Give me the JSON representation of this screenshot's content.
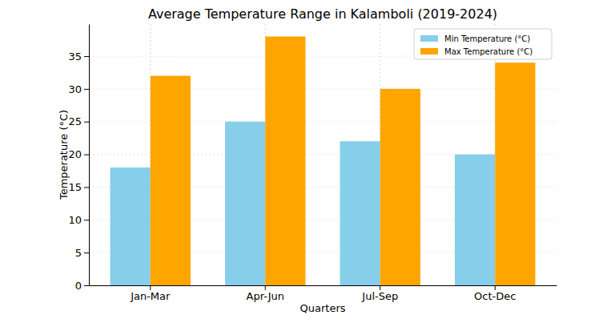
{
  "chart_data": {
    "type": "bar",
    "title": "Average Temperature Range in Kalamboli (2019-2024)",
    "x_label": "Quarters",
    "y_label": "Temperature (°C)",
    "categories": [
      "Jan-Mar",
      "Apr-Jun",
      "Jul-Sep",
      "Oct-Dec"
    ],
    "series": [
      {
        "name": "Min Temperature (°C)",
        "color": "#87ceeb",
        "values": [
          18,
          25,
          22,
          20
        ]
      },
      {
        "name": "Max Temperature (°C)",
        "color": "#ffa500",
        "values": [
          32,
          38,
          30,
          34
        ]
      }
    ],
    "ylim": [
      0,
      39.9
    ],
    "yticks": [
      0,
      5,
      10,
      15,
      20,
      25,
      30,
      35
    ],
    "grid": true,
    "legend": "upper right"
  }
}
